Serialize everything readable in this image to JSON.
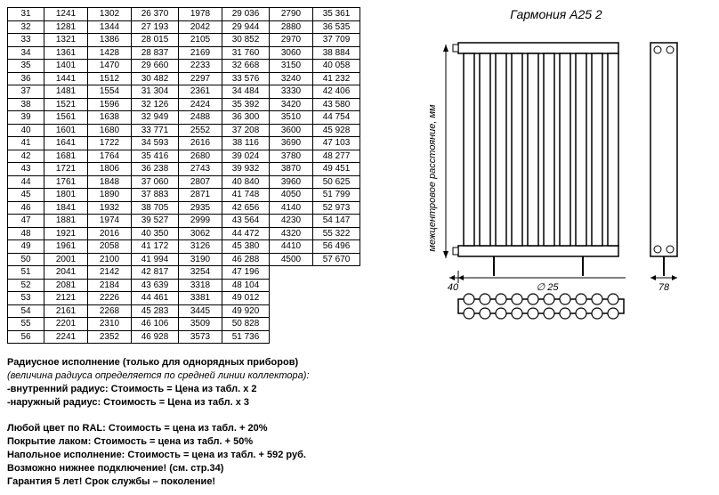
{
  "table": {
    "rows": [
      [
        "31",
        "1241",
        "1302",
        "26 370",
        "1978",
        "29 036",
        "2790",
        "35 361"
      ],
      [
        "32",
        "1281",
        "1344",
        "27 193",
        "2042",
        "29 944",
        "2880",
        "36 535"
      ],
      [
        "33",
        "1321",
        "1386",
        "28 015",
        "2105",
        "30 852",
        "2970",
        "37 709"
      ],
      [
        "34",
        "1361",
        "1428",
        "28 837",
        "2169",
        "31 760",
        "3060",
        "38 884"
      ],
      [
        "35",
        "1401",
        "1470",
        "29 660",
        "2233",
        "32 668",
        "3150",
        "40 058"
      ],
      [
        "36",
        "1441",
        "1512",
        "30 482",
        "2297",
        "33 576",
        "3240",
        "41 232"
      ],
      [
        "37",
        "1481",
        "1554",
        "31 304",
        "2361",
        "34 484",
        "3330",
        "42 406"
      ],
      [
        "38",
        "1521",
        "1596",
        "32 126",
        "2424",
        "35 392",
        "3420",
        "43 580"
      ],
      [
        "39",
        "1561",
        "1638",
        "32 949",
        "2488",
        "36 300",
        "3510",
        "44 754"
      ],
      [
        "40",
        "1601",
        "1680",
        "33 771",
        "2552",
        "37 208",
        "3600",
        "45 928"
      ],
      [
        "41",
        "1641",
        "1722",
        "34 593",
        "2616",
        "38 116",
        "3690",
        "47 103"
      ],
      [
        "42",
        "1681",
        "1764",
        "35 416",
        "2680",
        "39 024",
        "3780",
        "48 277"
      ],
      [
        "43",
        "1721",
        "1806",
        "36 238",
        "2743",
        "39 932",
        "3870",
        "49 451"
      ],
      [
        "44",
        "1761",
        "1848",
        "37 060",
        "2807",
        "40 840",
        "3960",
        "50 625"
      ],
      [
        "45",
        "1801",
        "1890",
        "37 883",
        "2871",
        "41 748",
        "4050",
        "51 799"
      ],
      [
        "46",
        "1841",
        "1932",
        "38 705",
        "2935",
        "42 656",
        "4140",
        "52 973"
      ],
      [
        "47",
        "1881",
        "1974",
        "39 527",
        "2999",
        "43 564",
        "4230",
        "54 147"
      ],
      [
        "48",
        "1921",
        "2016",
        "40 350",
        "3062",
        "44 472",
        "4320",
        "55 322"
      ],
      [
        "49",
        "1961",
        "2058",
        "41 172",
        "3126",
        "45 380",
        "4410",
        "56 496"
      ],
      [
        "50",
        "2001",
        "2100",
        "41 994",
        "3190",
        "46 288",
        "4500",
        "57 670"
      ],
      [
        "51",
        "2041",
        "2142",
        "42 817",
        "3254",
        "47 196",
        "",
        ""
      ],
      [
        "52",
        "2081",
        "2184",
        "43 639",
        "3318",
        "48 104",
        "",
        ""
      ],
      [
        "53",
        "2121",
        "2226",
        "44 461",
        "3381",
        "49 012",
        "",
        ""
      ],
      [
        "54",
        "2161",
        "2268",
        "45 283",
        "3445",
        "49 920",
        "",
        ""
      ],
      [
        "55",
        "2201",
        "2310",
        "46 106",
        "3509",
        "50 828",
        "",
        ""
      ],
      [
        "56",
        "2241",
        "2352",
        "46 928",
        "3573",
        "51 736",
        "",
        ""
      ]
    ]
  },
  "diagram": {
    "title": "Гармония А25 2",
    "vlabel": "межцентровое расстояние, мм",
    "dim_left": "40",
    "dim_center": "∅ 25",
    "dim_right": "78"
  },
  "notes": {
    "l1": "Радиусное исполнение (только для однорядных приборов)",
    "l2": "(величина радиуса определяется по средней линии коллектора):",
    "l3": "-внутренний радиус: Стоимость = Цена из табл. х 2",
    "l4": "-наружный радиус: Стоимость = Цена из табл. х 3",
    "l5": "Любой цвет по RAL: Стоимость = цена из табл. + 20%",
    "l6": "Покрытие лаком: Стоимость = цена из табл. + 50%",
    "l7": "Напольное исполнение: Стоимость = цена из табл. + 592 руб.",
    "l8": "Возможно нижнее подключение! (см. стр.34)",
    "l9": "Гарантия 5 лет! Срок службы – поколение!"
  }
}
